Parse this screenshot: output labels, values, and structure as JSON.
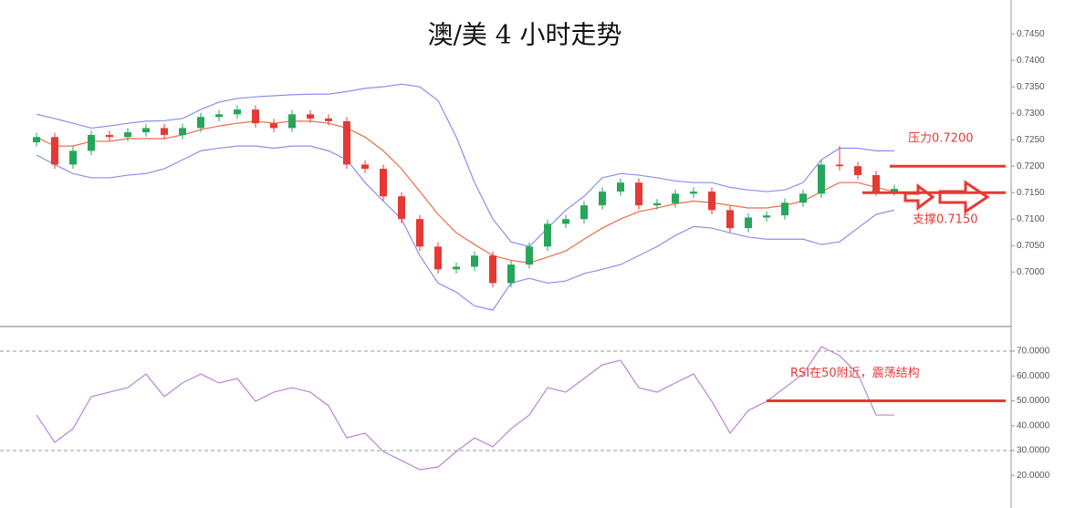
{
  "chart_data": [
    {
      "type": "candlestick",
      "title": "澳/美 4 小时走势",
      "ylim": [
        0.6897,
        0.7514
      ],
      "yticks": [
        {
          "value": 0.7,
          "label": "0.7000"
        },
        {
          "value": 0.705,
          "label": "0.7050"
        },
        {
          "value": 0.71,
          "label": "0.7100"
        },
        {
          "value": 0.715,
          "label": "0.7150"
        },
        {
          "value": 0.72,
          "label": "0.7200"
        },
        {
          "value": 0.725,
          "label": "0.7250"
        },
        {
          "value": 0.73,
          "label": "0.7300"
        },
        {
          "value": 0.735,
          "label": "0.7350"
        },
        {
          "value": 0.74,
          "label": "0.7400"
        },
        {
          "value": 0.745,
          "label": "0.7450"
        }
      ],
      "up_color": "#26a65b",
      "down_color": "#e53935",
      "open": [
        0.7245,
        0.7255,
        0.7203,
        0.7229,
        0.7259,
        0.7255,
        0.7264,
        0.7272,
        0.7259,
        0.7272,
        0.7293,
        0.7298,
        0.7307,
        0.7281,
        0.7272,
        0.7298,
        0.729,
        0.7285,
        0.7203,
        0.7195,
        0.7143,
        0.71,
        0.7048,
        0.7005,
        0.701,
        0.7031,
        0.6979,
        0.7014,
        0.7048,
        0.7091,
        0.71,
        0.7126,
        0.7152,
        0.7169,
        0.7126,
        0.713,
        0.7148,
        0.7152,
        0.7117,
        0.7083,
        0.7103,
        0.7107,
        0.7131,
        0.7148,
        0.7203,
        0.72,
        0.7183,
        0.7152
      ],
      "high": [
        0.7263,
        0.7263,
        0.7237,
        0.7267,
        0.7267,
        0.7272,
        0.728,
        0.728,
        0.728,
        0.7301,
        0.7306,
        0.7315,
        0.7315,
        0.7289,
        0.7306,
        0.7306,
        0.7298,
        0.7293,
        0.7211,
        0.7203,
        0.7151,
        0.7108,
        0.7056,
        0.7018,
        0.7039,
        0.7039,
        0.7022,
        0.7056,
        0.7099,
        0.7108,
        0.7134,
        0.716,
        0.7177,
        0.7177,
        0.7138,
        0.7156,
        0.716,
        0.716,
        0.7125,
        0.7111,
        0.7115,
        0.7139,
        0.7156,
        0.7211,
        0.7238,
        0.7208,
        0.7191,
        0.7165
      ],
      "low": [
        0.7237,
        0.7195,
        0.7195,
        0.7221,
        0.7247,
        0.7247,
        0.7256,
        0.7251,
        0.7251,
        0.7264,
        0.7285,
        0.729,
        0.7273,
        0.7264,
        0.7264,
        0.7282,
        0.7277,
        0.7195,
        0.7187,
        0.7135,
        0.7092,
        0.704,
        0.6997,
        0.6997,
        0.7002,
        0.6971,
        0.6971,
        0.7006,
        0.704,
        0.7083,
        0.7092,
        0.7118,
        0.7144,
        0.7118,
        0.7118,
        0.7122,
        0.714,
        0.7109,
        0.7075,
        0.7075,
        0.7095,
        0.7099,
        0.7123,
        0.714,
        0.7192,
        0.7175,
        0.7144,
        0.7144
      ],
      "close": [
        0.7255,
        0.7203,
        0.7229,
        0.7259,
        0.7255,
        0.7264,
        0.7272,
        0.7259,
        0.7272,
        0.7293,
        0.7298,
        0.7307,
        0.7281,
        0.7272,
        0.7298,
        0.729,
        0.7285,
        0.7203,
        0.7195,
        0.7143,
        0.71,
        0.7048,
        0.7005,
        0.701,
        0.7031,
        0.6979,
        0.7014,
        0.7048,
        0.7091,
        0.71,
        0.7126,
        0.7152,
        0.7169,
        0.7126,
        0.713,
        0.7148,
        0.7152,
        0.7117,
        0.7083,
        0.7103,
        0.7107,
        0.7131,
        0.7148,
        0.7203,
        0.72,
        0.7183,
        0.7152,
        0.7157
      ],
      "overlays": [
        {
          "color": "#8c8cf0",
          "values": [
            0.7298,
            0.729,
            0.7281,
            0.7272,
            0.7276,
            0.7281,
            0.7285,
            0.7286,
            0.729,
            0.7307,
            0.7321,
            0.7328,
            0.7331,
            0.7333,
            0.7335,
            0.7336,
            0.7336,
            0.7341,
            0.7347,
            0.735,
            0.7355,
            0.735,
            0.7324,
            0.7255,
            0.7169,
            0.71,
            0.7057,
            0.7048,
            0.7083,
            0.7117,
            0.7143,
            0.7178,
            0.7186,
            0.7183,
            0.7178,
            0.7172,
            0.7169,
            0.7169,
            0.716,
            0.7155,
            0.7152,
            0.7155,
            0.7169,
            0.7212,
            0.7234,
            0.7234,
            0.7229,
            0.7229
          ]
        },
        {
          "color": "#ef6a4a",
          "values": [
            0.7255,
            0.7238,
            0.7238,
            0.7247,
            0.7247,
            0.7252,
            0.7252,
            0.7252,
            0.7259,
            0.7269,
            0.7276,
            0.7281,
            0.7285,
            0.7281,
            0.7285,
            0.7285,
            0.7281,
            0.7272,
            0.7255,
            0.7229,
            0.7195,
            0.7152,
            0.7109,
            0.7074,
            0.7052,
            0.7031,
            0.7022,
            0.7017,
            0.7028,
            0.704,
            0.7062,
            0.7083,
            0.71,
            0.7114,
            0.7121,
            0.7129,
            0.7134,
            0.7131,
            0.7126,
            0.7121,
            0.7121,
            0.7126,
            0.7134,
            0.7152,
            0.7169,
            0.7169,
            0.716,
            0.7152
          ]
        },
        {
          "color": "#8c8cf0",
          "values": [
            0.7221,
            0.7203,
            0.7186,
            0.7178,
            0.7178,
            0.7183,
            0.7186,
            0.7195,
            0.7212,
            0.7229,
            0.7234,
            0.7238,
            0.7238,
            0.7234,
            0.7238,
            0.7238,
            0.7229,
            0.7212,
            0.7169,
            0.7134,
            0.71,
            0.7031,
            0.6979,
            0.6962,
            0.6936,
            0.6928,
            0.6979,
            0.6988,
            0.6979,
            0.6983,
            0.6997,
            0.7005,
            0.7014,
            0.7031,
            0.7048,
            0.7069,
            0.7086,
            0.7083,
            0.7074,
            0.7066,
            0.7062,
            0.7062,
            0.7062,
            0.7052,
            0.7057,
            0.7083,
            0.7109,
            0.7117
          ]
        }
      ],
      "levels": [
        {
          "value": 0.72,
          "label": "压力0.7200",
          "color": "#e53935"
        },
        {
          "value": 0.715,
          "label": "支撑0.7150",
          "color": "#e53935"
        }
      ]
    },
    {
      "type": "line",
      "color": "#b884d6",
      "values": [
        44.3,
        33.3,
        38.8,
        51.7,
        53.5,
        55.3,
        60.8,
        51.7,
        57.2,
        60.8,
        57.2,
        59.0,
        49.8,
        53.5,
        55.3,
        53.5,
        48.0,
        35.1,
        37.0,
        29.6,
        26.0,
        22.3,
        23.4,
        29.6,
        35.1,
        31.5,
        38.8,
        44.3,
        55.3,
        53.5,
        59.0,
        64.5,
        66.3,
        55.3,
        53.5,
        57.2,
        60.8,
        49.8,
        37.0,
        46.1,
        49.8,
        55.3,
        60.8,
        71.8,
        68.2,
        60.8,
        44.3,
        44.3
      ],
      "ylim": [
        6.9,
        79.9
      ],
      "yticks": [
        {
          "value": 20,
          "label": "20.0000"
        },
        {
          "value": 30,
          "label": "30.0000"
        },
        {
          "value": 40,
          "label": "40.0000"
        },
        {
          "value": 50,
          "label": "50.0000"
        },
        {
          "value": 60,
          "label": "60.0000"
        },
        {
          "value": 70,
          "label": "70.0000"
        }
      ],
      "guides": [
        70,
        30
      ],
      "levels": [
        {
          "value": 50,
          "label": "RSI在50附近，震荡结构",
          "color": "#e53935"
        }
      ]
    }
  ]
}
